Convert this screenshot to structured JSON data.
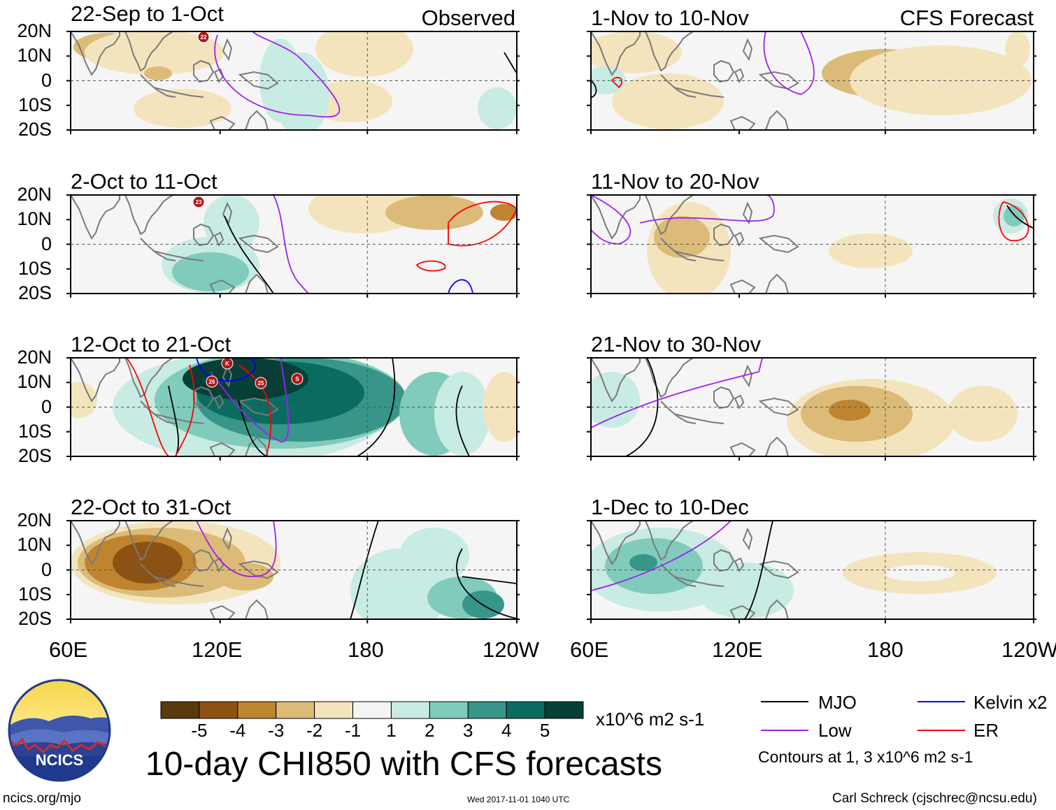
{
  "figure": {
    "title": "10-day CHI850 with CFS forecasts",
    "left_column_label": "Observed",
    "right_column_label": "CFS Forecast"
  },
  "axes": {
    "lat_labels": [
      "20N",
      "10N",
      "0",
      "10S",
      "20S"
    ],
    "lon_labels": [
      "60E",
      "120E",
      "180",
      "120W"
    ]
  },
  "panels": [
    {
      "title": "22-Sep to 1-Oct"
    },
    {
      "title": "2-Oct to 11-Oct"
    },
    {
      "title": "12-Oct to 21-Oct"
    },
    {
      "title": "22-Oct to 31-Oct"
    },
    {
      "title": "1-Nov to 10-Nov"
    },
    {
      "title": "11-Nov to 20-Nov"
    },
    {
      "title": "21-Nov to 30-Nov"
    },
    {
      "title": "1-Dec to 10-Dec"
    }
  ],
  "storm_markers": [
    "22",
    "23",
    "26",
    "K",
    "25",
    "S"
  ],
  "colorbar": {
    "ticks": [
      "-5",
      "-4",
      "-3",
      "-2",
      "-1",
      "1",
      "2",
      "3",
      "4",
      "5"
    ],
    "units": "x10^6 m2 s-1",
    "colors": [
      "#5a3a0c",
      "#8c5213",
      "#bf8430",
      "#dcbb78",
      "#f4e4bd",
      "#f5f5f5",
      "#c8ebe3",
      "#80cbbb",
      "#379589",
      "#0a6c60",
      "#073f37"
    ]
  },
  "legend": {
    "items": [
      {
        "label": "MJO",
        "color": "#000000"
      },
      {
        "label": "Low",
        "color": "#a020f0"
      },
      {
        "label": "Kelvin x2",
        "color": "#0000ff"
      },
      {
        "label": "ER",
        "color": "#ff0000"
      }
    ],
    "note": "Contours at 1, 3 x10^6 m2 s-1"
  },
  "logo": {
    "text": "NCICS"
  },
  "footer": {
    "website": "ncics.org/mjo",
    "timestamp": "Wed 2017-11-01 1040 UTC",
    "credit": "Carl Schreck (cjschrec@ncsu.edu)"
  }
}
